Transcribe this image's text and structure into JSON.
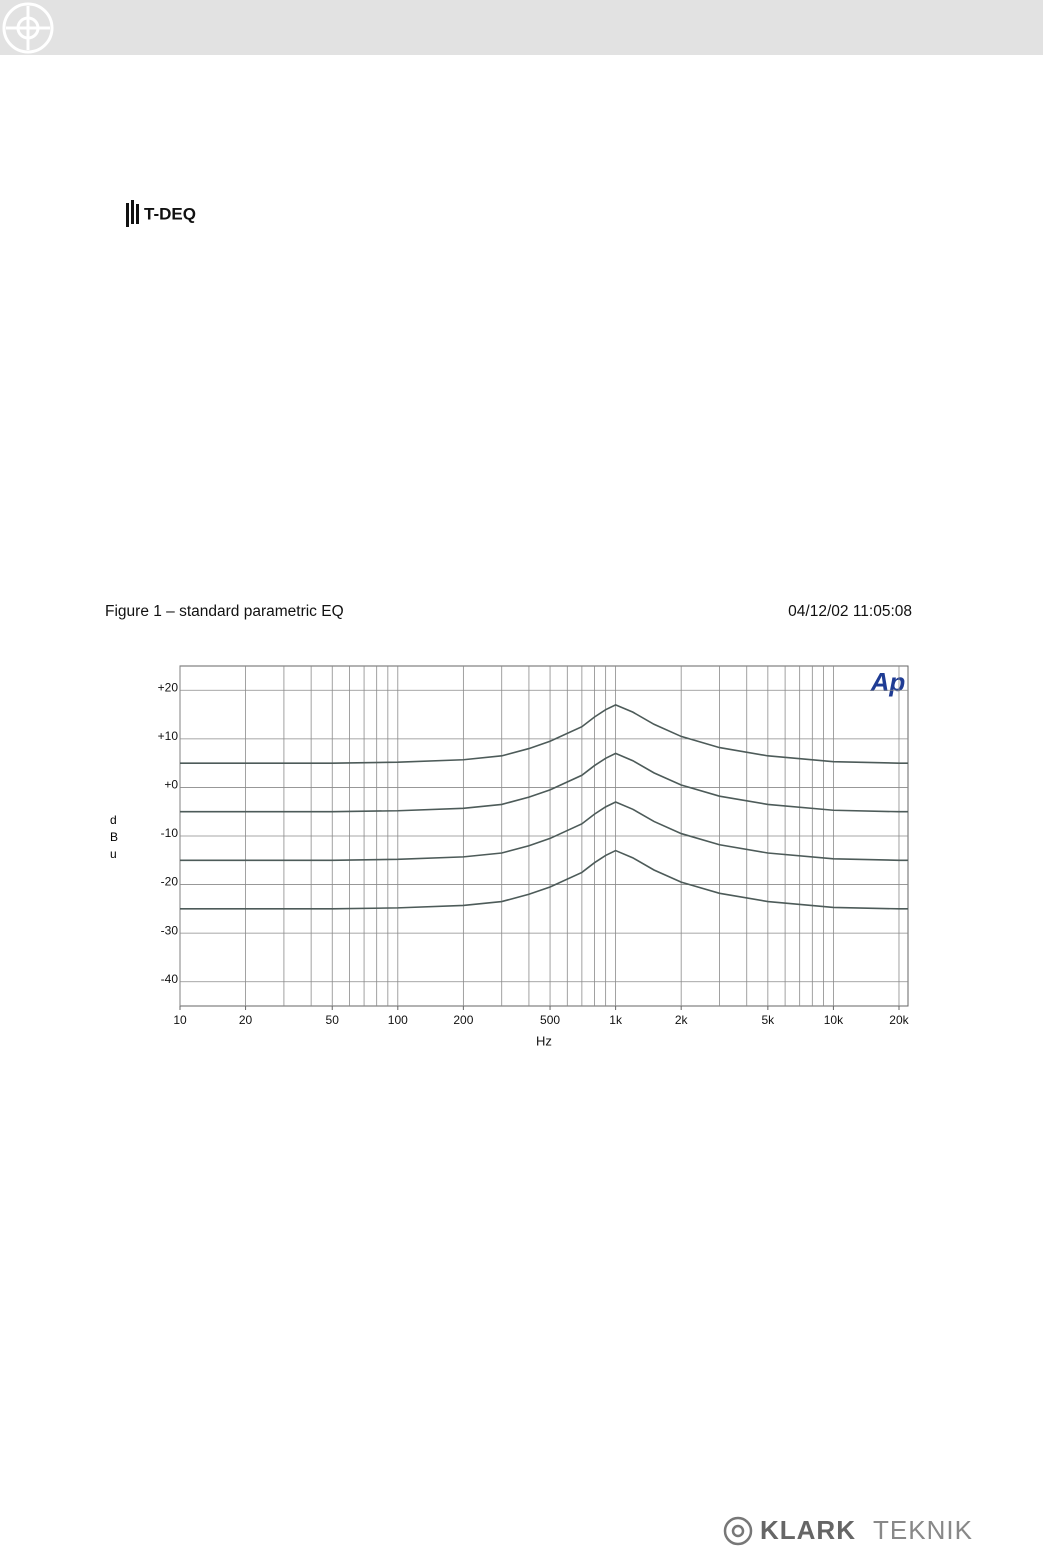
{
  "product_logo": "T-DEQ",
  "figure_caption": "Figure 1 – standard parametric EQ",
  "timestamp": "04/12/02 11:05:08",
  "chart_data": {
    "type": "line",
    "logo": "Ap",
    "x_label": "Hz",
    "y_label": "dBu",
    "xscale": "log",
    "xlim": [
      10,
      22000
    ],
    "ylim": [
      -45,
      25
    ],
    "xticks": [
      10,
      20,
      50,
      100,
      200,
      500,
      {
        "value": 1000,
        "label": "1k"
      },
      {
        "value": 2000,
        "label": "2k"
      },
      {
        "value": 5000,
        "label": "5k"
      },
      {
        "value": 10000,
        "label": "10k"
      },
      {
        "value": 20000,
        "label": "20k"
      }
    ],
    "xgrid": [
      10,
      20,
      30,
      40,
      50,
      60,
      70,
      80,
      90,
      100,
      200,
      300,
      400,
      500,
      600,
      700,
      800,
      900,
      1000,
      2000,
      3000,
      4000,
      5000,
      6000,
      7000,
      8000,
      9000,
      10000,
      20000
    ],
    "yticks": [
      {
        "value": 20,
        "label": "+20"
      },
      {
        "value": 10,
        "label": "+10"
      },
      {
        "value": 0,
        "label": "+0"
      },
      -10,
      -20,
      -30,
      -40
    ],
    "grid": true,
    "x": [
      10,
      20,
      50,
      100,
      200,
      300,
      400,
      500,
      700,
      800,
      900,
      1000,
      1200,
      1500,
      2000,
      3000,
      5000,
      10000,
      20000,
      22000
    ],
    "series": [
      {
        "color": "#4d5b59",
        "values": [
          5,
          5,
          5,
          5.2,
          5.7,
          6.5,
          8,
          9.5,
          12.5,
          14.5,
          16,
          17,
          15.5,
          13,
          10.5,
          8.2,
          6.5,
          5.3,
          5,
          5
        ]
      },
      {
        "color": "#4d5b59",
        "values": [
          -5,
          -5,
          -5,
          -4.8,
          -4.3,
          -3.5,
          -2,
          -0.5,
          2.5,
          4.5,
          6,
          7,
          5.5,
          3,
          0.5,
          -1.8,
          -3.5,
          -4.7,
          -5,
          -5
        ]
      },
      {
        "color": "#4d5b59",
        "values": [
          -15,
          -15,
          -15,
          -14.8,
          -14.3,
          -13.5,
          -12,
          -10.5,
          -7.5,
          -5.5,
          -4,
          -3,
          -4.5,
          -7,
          -9.5,
          -11.8,
          -13.5,
          -14.7,
          -15,
          -15
        ]
      },
      {
        "color": "#4d5b59",
        "values": [
          -25,
          -25,
          -25,
          -24.8,
          -24.3,
          -23.5,
          -22,
          -20.5,
          -17.5,
          -15.5,
          -14,
          -13,
          -14.5,
          -17,
          -19.5,
          -21.8,
          -23.5,
          -24.7,
          -25,
          -25
        ]
      }
    ]
  },
  "footer_logo": {
    "brand": "KLARK",
    "sub": "TEKNIK"
  }
}
